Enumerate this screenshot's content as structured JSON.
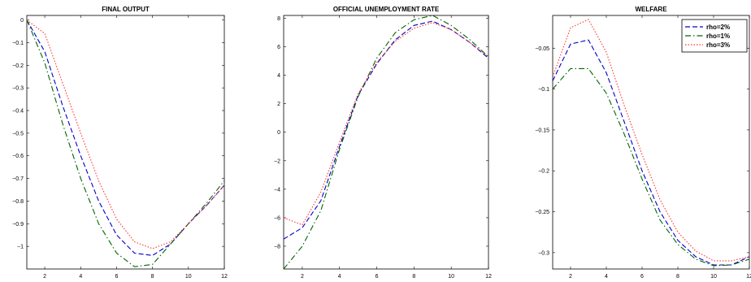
{
  "chart_data": [
    {
      "type": "line",
      "title": "FINAL OUTPUT",
      "xlabel": "",
      "ylabel": "",
      "xlim": [
        1,
        12
      ],
      "ylim": [
        -1.1,
        0.02
      ],
      "xticks": [
        2,
        4,
        6,
        8,
        10,
        12
      ],
      "yticks": [
        -1,
        -0.9,
        -0.8,
        -0.7,
        -0.6,
        -0.5,
        -0.4,
        -0.3,
        -0.2,
        -0.1,
        0
      ],
      "ytick_labels": [
        "−1",
        "−0.9",
        "−0.8",
        "−0.7",
        "−0.6",
        "−0.5",
        "−0.4",
        "−0.3",
        "−0.2",
        "−0.1",
        "0"
      ],
      "x": [
        1,
        2,
        3,
        4,
        5,
        6,
        7,
        8,
        9,
        10,
        11,
        12
      ],
      "series": [
        {
          "name": "rho=2%",
          "color": "#0000cc",
          "dash": "dashed",
          "values": [
            0.0,
            -0.14,
            -0.38,
            -0.6,
            -0.8,
            -0.95,
            -1.03,
            -1.04,
            -0.99,
            -0.9,
            -0.82,
            -0.73
          ]
        },
        {
          "name": "rho=1%",
          "color": "#006600",
          "dash": "dashdot",
          "values": [
            0.0,
            -0.19,
            -0.46,
            -0.7,
            -0.9,
            -1.03,
            -1.09,
            -1.08,
            -0.99,
            -0.9,
            -0.81,
            -0.71
          ]
        },
        {
          "name": "rho=3%",
          "color": "#ff3333",
          "dash": "dotted",
          "values": [
            0.0,
            -0.06,
            -0.28,
            -0.5,
            -0.71,
            -0.88,
            -0.98,
            -1.01,
            -0.98,
            -0.9,
            -0.82,
            -0.73
          ]
        }
      ]
    },
    {
      "type": "line",
      "title": "OFFICIAL UNEMPLOYMENT RATE",
      "xlabel": "",
      "ylabel": "",
      "xlim": [
        1,
        12
      ],
      "ylim": [
        -9.6,
        8.2
      ],
      "xticks": [
        2,
        4,
        6,
        8,
        10,
        12
      ],
      "yticks": [
        -8,
        -6,
        -4,
        -2,
        0,
        2,
        4,
        6,
        8
      ],
      "ytick_labels": [
        "−8",
        "−6",
        "−4",
        "−2",
        "0",
        "2",
        "4",
        "6",
        "8"
      ],
      "x": [
        1,
        2,
        3,
        4,
        5,
        6,
        7,
        8,
        9,
        10,
        11,
        12
      ],
      "series": [
        {
          "name": "rho=2%",
          "color": "#0000cc",
          "dash": "dashed",
          "values": [
            -7.5,
            -6.7,
            -4.8,
            -1.0,
            2.6,
            4.8,
            6.5,
            7.5,
            7.8,
            7.2,
            6.3,
            5.2
          ]
        },
        {
          "name": "rho=1%",
          "color": "#006600",
          "dash": "dashdot",
          "values": [
            -9.6,
            -8.0,
            -5.5,
            -1.2,
            2.5,
            5.2,
            7.0,
            7.9,
            8.2,
            7.5,
            6.5,
            5.3
          ]
        },
        {
          "name": "rho=3%",
          "color": "#ff3333",
          "dash": "dotted",
          "values": [
            -6.0,
            -6.5,
            -4.2,
            -0.7,
            2.7,
            4.9,
            6.4,
            7.3,
            7.7,
            7.2,
            6.3,
            5.3
          ]
        }
      ]
    },
    {
      "type": "line",
      "title": "WELFARE",
      "xlabel": "",
      "ylabel": "",
      "xlim": [
        1,
        12
      ],
      "ylim": [
        -0.32,
        -0.01
      ],
      "xticks": [
        2,
        4,
        6,
        8,
        10,
        12
      ],
      "yticks": [
        -0.3,
        -0.25,
        -0.2,
        -0.15,
        -0.1,
        -0.05
      ],
      "ytick_labels": [
        "−0.3",
        "−0.25",
        "−0.2",
        "−0.15",
        "−0.1",
        "−0.05"
      ],
      "legend": {
        "position": "top-right",
        "entries": [
          "rho=2%",
          "rho=1%",
          "rho=3%"
        ]
      },
      "x": [
        1,
        2,
        3,
        4,
        5,
        6,
        7,
        8,
        9,
        10,
        11,
        12
      ],
      "series": [
        {
          "name": "rho=2%",
          "color": "#0000cc",
          "dash": "dashed",
          "values": [
            -0.09,
            -0.045,
            -0.04,
            -0.08,
            -0.14,
            -0.2,
            -0.25,
            -0.285,
            -0.305,
            -0.315,
            -0.315,
            -0.305
          ]
        },
        {
          "name": "rho=1%",
          "color": "#006600",
          "dash": "dashdot",
          "values": [
            -0.1,
            -0.075,
            -0.075,
            -0.105,
            -0.155,
            -0.21,
            -0.26,
            -0.29,
            -0.308,
            -0.316,
            -0.315,
            -0.308
          ]
        },
        {
          "name": "rho=3%",
          "color": "#ff3333",
          "dash": "dotted",
          "values": [
            -0.085,
            -0.025,
            -0.015,
            -0.055,
            -0.12,
            -0.18,
            -0.235,
            -0.275,
            -0.298,
            -0.31,
            -0.31,
            -0.305
          ]
        }
      ]
    }
  ]
}
